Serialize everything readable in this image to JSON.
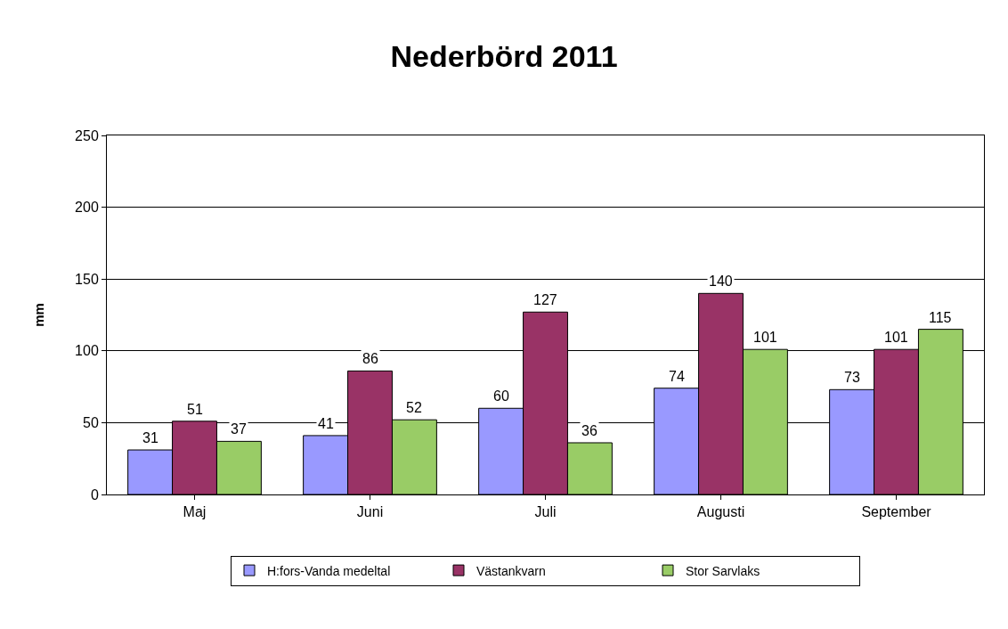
{
  "chart_data": {
    "type": "bar",
    "title": "Nederbörd 2011",
    "ylabel": "mm",
    "categories": [
      "Maj",
      "Juni",
      "Juli",
      "Augusti",
      "September"
    ],
    "series": [
      {
        "name": "H:fors-Vanda medeltal",
        "color": "#9999ff",
        "values": [
          31,
          41,
          60,
          74,
          73
        ]
      },
      {
        "name": "Västankvarn",
        "color": "#993366",
        "values": [
          51,
          86,
          127,
          140,
          101
        ]
      },
      {
        "name": "Stor Sarvlaks",
        "color": "#99cc66",
        "values": [
          37,
          52,
          36,
          101,
          115
        ]
      }
    ],
    "ylim": [
      0,
      250
    ],
    "yticks": [
      0,
      50,
      100,
      150,
      200,
      250
    ],
    "grid": "y",
    "legend": "bottom",
    "data_labels": true
  }
}
